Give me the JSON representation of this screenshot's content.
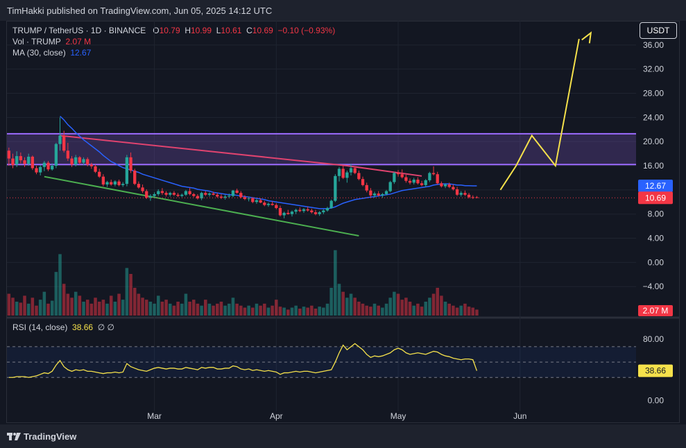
{
  "header": {
    "published": "TimHakki published on TradingView.com, Jun 05, 2025 14:12 UTC"
  },
  "legend": {
    "pair": "TRUMP / TetherUS · 1D · BINANCE",
    "o_label": "O",
    "o": "10.79",
    "h_label": "H",
    "h": "10.99",
    "l_label": "L",
    "l": "10.61",
    "c_label": "C",
    "c": "10.69",
    "change": "−0.10 (−0.93%)",
    "vol_label": "Vol · TRUMP",
    "vol": "2.07 M",
    "ma_label": "MA (30, close)",
    "ma": "12.67"
  },
  "currency_button": "USDT",
  "rsi": {
    "label": "RSI (14, close)",
    "value": "38.66",
    "icons": "∅ ∅"
  },
  "footer": {
    "brand": "TradingView"
  },
  "colors": {
    "up": "#26a69a",
    "down": "#f23645",
    "ma": "#2962ff",
    "rsi": "#f5e14b",
    "zone": "#7e57c2"
  },
  "chart_data": {
    "type": "candlestick",
    "x_ticks": [
      "Mar",
      "Apr",
      "May",
      "Jun"
    ],
    "y_ticks": [
      "36.00",
      "32.00",
      "28.00",
      "24.00",
      "20.00",
      "16.00",
      "12.00",
      "8.00",
      "4.00",
      "0.00",
      "−4.00"
    ],
    "ylim": [
      -8.8,
      40
    ],
    "price_badges": {
      "ma": "12.67",
      "last": "10.69",
      "volume": "2.07 M"
    },
    "candles": [
      [
        18.5,
        19.0,
        16.0,
        17.2
      ],
      [
        17.2,
        18.0,
        15.6,
        16.1
      ],
      [
        16.2,
        18.4,
        15.8,
        17.6
      ],
      [
        17.6,
        18.2,
        16.4,
        16.9
      ],
      [
        16.9,
        17.4,
        15.8,
        16.3
      ],
      [
        16.3,
        18.0,
        16.0,
        17.5
      ],
      [
        17.5,
        17.7,
        15.3,
        15.6
      ],
      [
        15.6,
        16.0,
        14.6,
        14.9
      ],
      [
        14.9,
        16.1,
        14.4,
        15.8
      ],
      [
        15.8,
        16.8,
        15.1,
        16.5
      ],
      [
        16.5,
        16.8,
        15.1,
        15.4
      ],
      [
        15.4,
        16.4,
        15.2,
        16.0
      ],
      [
        16.0,
        19.8,
        15.6,
        19.6
      ],
      [
        19.6,
        24.0,
        18.5,
        21.0
      ],
      [
        21.0,
        21.8,
        18.2,
        18.5
      ],
      [
        18.5,
        19.8,
        16.8,
        17.2
      ],
      [
        17.2,
        17.6,
        15.8,
        16.2
      ],
      [
        16.2,
        17.8,
        15.9,
        17.4
      ],
      [
        17.4,
        17.6,
        16.2,
        16.5
      ],
      [
        16.5,
        17.4,
        16.1,
        17.1
      ],
      [
        17.1,
        17.4,
        15.9,
        16.2
      ],
      [
        16.2,
        16.5,
        15.5,
        15.9
      ],
      [
        15.9,
        16.2,
        14.8,
        15.0
      ],
      [
        15.0,
        15.5,
        14.0,
        14.2
      ],
      [
        14.2,
        14.6,
        12.6,
        12.9
      ],
      [
        12.9,
        13.5,
        12.5,
        13.3
      ],
      [
        13.3,
        13.7,
        12.7,
        12.9
      ],
      [
        12.9,
        13.6,
        12.6,
        13.4
      ],
      [
        13.4,
        13.7,
        12.6,
        12.8
      ],
      [
        12.8,
        13.3,
        12.5,
        13.0
      ],
      [
        13.0,
        17.8,
        12.6,
        17.4
      ],
      [
        17.4,
        18.2,
        14.8,
        15.2
      ],
      [
        15.2,
        15.5,
        12.8,
        13.0
      ],
      [
        13.0,
        13.4,
        12.2,
        12.4
      ],
      [
        12.4,
        12.9,
        11.5,
        11.8
      ],
      [
        11.8,
        12.1,
        10.5,
        10.7
      ],
      [
        10.7,
        11.3,
        10.2,
        11.0
      ],
      [
        11.0,
        11.6,
        10.6,
        11.3
      ],
      [
        11.3,
        12.1,
        11.0,
        11.8
      ],
      [
        11.8,
        12.3,
        11.2,
        11.5
      ],
      [
        11.5,
        11.8,
        10.9,
        11.2
      ],
      [
        11.2,
        11.7,
        10.9,
        11.5
      ],
      [
        11.5,
        11.8,
        11.0,
        11.2
      ],
      [
        11.2,
        11.5,
        10.8,
        11.0
      ],
      [
        11.0,
        11.4,
        10.8,
        11.2
      ],
      [
        11.2,
        12.0,
        11.0,
        11.8
      ],
      [
        11.8,
        12.3,
        11.1,
        11.3
      ],
      [
        11.3,
        11.5,
        10.8,
        11.0
      ],
      [
        11.0,
        11.3,
        10.4,
        10.6
      ],
      [
        10.6,
        11.7,
        10.3,
        11.5
      ],
      [
        11.5,
        11.8,
        11.0,
        11.2
      ],
      [
        11.2,
        11.6,
        10.9,
        11.4
      ],
      [
        11.4,
        11.7,
        11.1,
        11.2
      ],
      [
        11.2,
        11.5,
        10.7,
        10.9
      ],
      [
        10.9,
        11.3,
        10.5,
        10.7
      ],
      [
        10.7,
        11.2,
        10.4,
        10.9
      ],
      [
        10.9,
        11.4,
        10.6,
        11.0
      ],
      [
        11.0,
        12.0,
        10.8,
        11.9
      ],
      [
        11.9,
        12.2,
        11.4,
        11.5
      ],
      [
        11.5,
        11.8,
        10.6,
        10.8
      ],
      [
        10.8,
        11.1,
        10.3,
        10.5
      ],
      [
        10.5,
        10.9,
        10.1,
        10.6
      ],
      [
        10.6,
        10.8,
        9.8,
        10.0
      ],
      [
        10.0,
        10.5,
        9.7,
        10.3
      ],
      [
        10.3,
        10.6,
        9.8,
        9.9
      ],
      [
        9.9,
        10.2,
        9.3,
        9.5
      ],
      [
        9.5,
        9.9,
        9.2,
        9.7
      ],
      [
        9.7,
        10.1,
        9.4,
        9.5
      ],
      [
        9.5,
        9.8,
        8.8,
        9.0
      ],
      [
        9.0,
        9.4,
        7.6,
        7.8
      ],
      [
        7.8,
        8.4,
        7.3,
        8.2
      ],
      [
        8.2,
        8.7,
        7.9,
        8.0
      ],
      [
        8.0,
        8.6,
        7.6,
        8.4
      ],
      [
        8.4,
        8.9,
        8.0,
        8.7
      ],
      [
        8.7,
        9.1,
        8.3,
        8.5
      ],
      [
        8.5,
        9.0,
        8.2,
        8.8
      ],
      [
        8.8,
        9.2,
        8.4,
        8.6
      ],
      [
        8.6,
        8.9,
        8.1,
        8.3
      ],
      [
        8.3,
        8.7,
        7.8,
        8.0
      ],
      [
        8.0,
        8.5,
        7.7,
        8.3
      ],
      [
        8.3,
        8.8,
        8.0,
        8.6
      ],
      [
        8.6,
        9.2,
        8.4,
        9.0
      ],
      [
        9.0,
        10.4,
        8.9,
        10.2
      ],
      [
        10.2,
        14.6,
        10.0,
        14.3
      ],
      [
        14.3,
        15.8,
        13.4,
        15.5
      ],
      [
        15.5,
        16.0,
        13.8,
        14.0
      ],
      [
        14.0,
        15.2,
        13.2,
        14.9
      ],
      [
        14.9,
        16.3,
        14.4,
        15.6
      ],
      [
        15.6,
        15.9,
        14.6,
        14.8
      ],
      [
        14.8,
        15.2,
        13.6,
        13.8
      ],
      [
        13.8,
        14.2,
        12.6,
        12.8
      ],
      [
        12.8,
        13.2,
        11.6,
        11.9
      ],
      [
        11.9,
        12.3,
        10.8,
        11.1
      ],
      [
        11.1,
        11.7,
        10.7,
        11.4
      ],
      [
        11.4,
        11.8,
        10.9,
        11.1
      ],
      [
        11.1,
        11.5,
        10.7,
        11.3
      ],
      [
        11.3,
        12.0,
        11.1,
        11.8
      ],
      [
        11.8,
        13.5,
        11.6,
        13.3
      ],
      [
        13.3,
        15.0,
        13.0,
        14.8
      ],
      [
        14.8,
        15.3,
        14.2,
        14.6
      ],
      [
        14.6,
        15.4,
        13.9,
        14.1
      ],
      [
        14.1,
        14.5,
        13.2,
        13.5
      ],
      [
        13.5,
        13.9,
        12.9,
        13.2
      ],
      [
        13.2,
        14.0,
        12.9,
        13.7
      ],
      [
        13.7,
        14.1,
        12.9,
        13.1
      ],
      [
        13.1,
        13.5,
        12.6,
        12.8
      ],
      [
        12.8,
        13.8,
        12.5,
        13.6
      ],
      [
        13.6,
        15.0,
        13.3,
        14.8
      ],
      [
        14.8,
        15.9,
        14.4,
        14.6
      ],
      [
        14.6,
        15.0,
        12.9,
        13.1
      ],
      [
        13.1,
        13.4,
        12.4,
        12.6
      ],
      [
        12.6,
        13.1,
        12.3,
        12.9
      ],
      [
        12.9,
        13.2,
        12.3,
        12.5
      ],
      [
        12.5,
        12.9,
        11.9,
        12.1
      ],
      [
        12.1,
        12.5,
        11.0,
        11.2
      ],
      [
        11.2,
        11.8,
        10.9,
        11.5
      ],
      [
        11.5,
        11.9,
        11.0,
        11.2
      ],
      [
        11.2,
        11.5,
        10.6,
        10.8
      ],
      [
        10.8,
        11.1,
        10.5,
        10.79
      ],
      [
        10.79,
        10.99,
        10.61,
        10.69
      ]
    ],
    "volume": [
      22,
      18,
      14,
      13,
      20,
      12,
      18,
      10,
      16,
      24,
      12,
      15,
      44,
      62,
      32,
      22,
      18,
      24,
      20,
      14,
      16,
      12,
      18,
      14,
      16,
      12,
      20,
      14,
      22,
      16,
      48,
      42,
      28,
      22,
      18,
      16,
      14,
      12,
      20,
      14,
      16,
      12,
      10,
      14,
      12,
      22,
      14,
      16,
      12,
      10,
      16,
      12,
      10,
      12,
      14,
      10,
      12,
      18,
      12,
      10,
      8,
      10,
      8,
      12,
      10,
      12,
      8,
      10,
      16,
      9,
      8,
      6,
      8,
      10,
      7,
      9,
      8,
      10,
      7,
      9,
      8,
      12,
      28,
      66,
      32,
      24,
      18,
      22,
      18,
      14,
      12,
      10,
      9,
      12,
      10,
      8,
      12,
      18,
      24,
      22,
      16,
      18,
      14,
      10,
      12,
      9,
      14,
      18,
      22,
      28,
      20,
      14,
      12,
      10,
      8,
      10,
      12,
      9,
      8,
      6
    ],
    "ma30": [
      null,
      null,
      null,
      null,
      null,
      null,
      null,
      null,
      null,
      null,
      null,
      null,
      null,
      24.2,
      23.6,
      22.8,
      22.2,
      21.5,
      20.9,
      20.3,
      19.8,
      19.3,
      18.8,
      18.3,
      17.7,
      17.2,
      16.7,
      16.4,
      16.0,
      15.7,
      15.5,
      15.3,
      15.1,
      14.9,
      14.6,
      14.4,
      14.2,
      14.0,
      13.8,
      13.6,
      13.4,
      13.2,
      13.0,
      12.8,
      12.6,
      12.5,
      12.4,
      12.3,
      12.1,
      12.0,
      11.9,
      11.8,
      11.6,
      11.5,
      11.4,
      11.3,
      11.2,
      11.2,
      11.1,
      11.0,
      10.9,
      10.8,
      10.7,
      10.6,
      10.5,
      10.4,
      10.2,
      10.1,
      10.0,
      9.9,
      9.8,
      9.7,
      9.6,
      9.5,
      9.4,
      9.3,
      9.2,
      9.1,
      9.0,
      8.9,
      8.9,
      8.9,
      9.0,
      9.2,
      9.5,
      9.8,
      10.0,
      10.2,
      10.4,
      10.5,
      10.6,
      10.7,
      10.8,
      10.9,
      11.0,
      11.1,
      11.2,
      11.3,
      11.5,
      11.7,
      11.9,
      12.0,
      12.1,
      12.2,
      12.3,
      12.4,
      12.5,
      12.6,
      12.8,
      12.9,
      13.0,
      13.0,
      13.0,
      12.9,
      12.8,
      12.8,
      12.7,
      12.7,
      12.67,
      12.67
    ],
    "rsi_ylim": [
      -14,
      106
    ],
    "rsi_ticks": [
      "80.00",
      "0.00"
    ],
    "rsi_bands": [
      70,
      50,
      30
    ],
    "rsi": [
      30,
      30,
      31,
      31,
      31,
      30,
      31,
      32,
      34,
      36,
      35,
      38,
      46,
      52,
      44,
      40,
      38,
      40,
      39,
      40,
      38,
      38,
      37,
      36,
      35,
      36,
      36,
      37,
      36,
      37,
      48,
      44,
      42,
      40,
      39,
      38,
      40,
      42,
      43,
      42,
      41,
      42,
      42,
      41,
      41,
      43,
      42,
      41,
      40,
      43,
      42,
      43,
      43,
      41,
      41,
      42,
      42,
      45,
      44,
      41,
      40,
      41,
      39,
      40,
      39,
      38,
      39,
      38,
      37,
      34,
      36,
      36,
      37,
      38,
      37,
      38,
      38,
      37,
      36,
      37,
      38,
      39,
      40,
      50,
      62,
      72,
      66,
      70,
      74,
      70,
      66,
      60,
      56,
      58,
      57,
      58,
      60,
      62,
      66,
      68,
      66,
      62,
      60,
      61,
      62,
      61,
      60,
      62,
      64,
      63,
      60,
      58,
      57,
      55,
      54,
      53,
      54,
      54,
      53,
      38.66
    ],
    "annotations": {
      "zone": [
        16.2,
        21.3
      ],
      "resistance_line": [
        [
          13,
          21.0
        ],
        [
          86,
          16.0
        ],
        [
          105,
          14.3
        ]
      ],
      "support_line": [
        [
          9,
          14.2
        ],
        [
          89,
          4.4
        ]
      ],
      "projection": [
        [
          125,
          12.0
        ],
        [
          129,
          16.0
        ],
        [
          133,
          21.0
        ],
        [
          139,
          16.0
        ],
        [
          145,
          37.0
        ]
      ],
      "projection_arrow_tip": [
        148,
        38.0
      ]
    }
  }
}
